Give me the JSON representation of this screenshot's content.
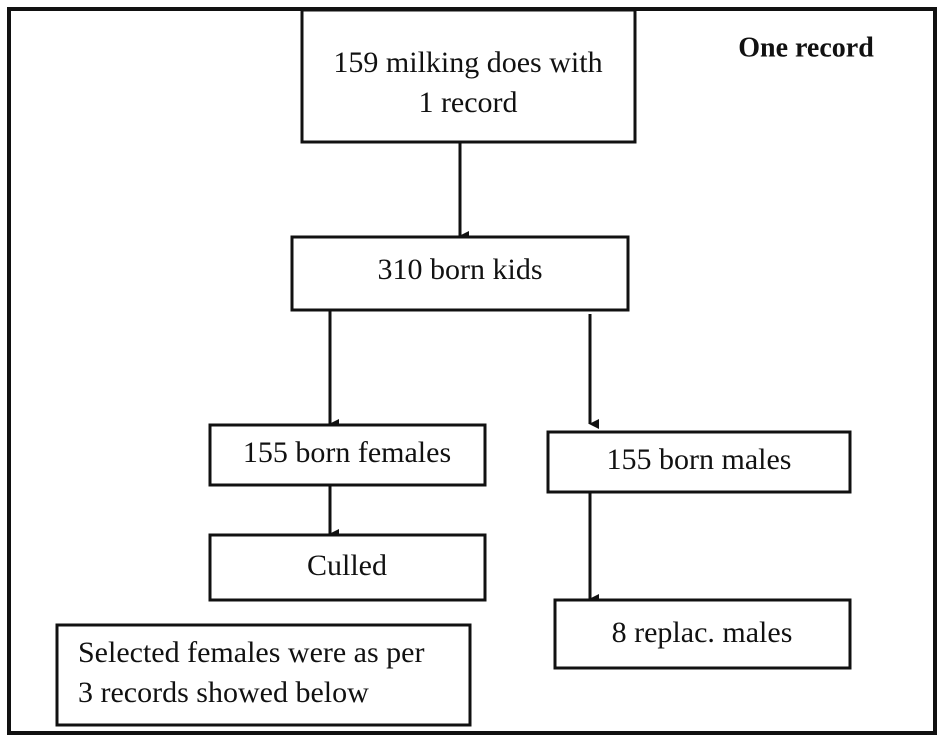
{
  "title": "One record",
  "nodes": [
    {
      "lines": [
        "159 milking does with",
        "1 record"
      ]
    },
    {
      "lines": [
        "310 born kids"
      ]
    },
    {
      "lines": [
        "155 born females"
      ]
    },
    {
      "lines": [
        "155 born males"
      ]
    },
    {
      "lines": [
        "Culled"
      ]
    },
    {
      "lines": [
        "8 replac. males"
      ]
    },
    {
      "lines": [
        "Selected females were as per",
        "3 records showed below"
      ]
    }
  ]
}
